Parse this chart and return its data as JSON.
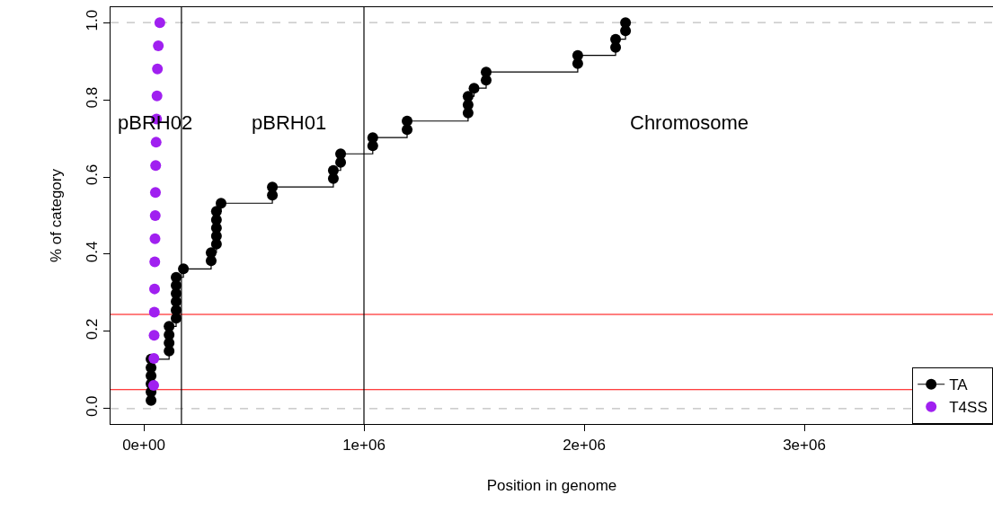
{
  "chart_data": {
    "type": "step",
    "xlabel": "Position in genome",
    "ylabel": "% of category",
    "xlim": [
      -151000,
      3857000
    ],
    "ylim": [
      -0.04,
      1.04
    ],
    "xticks": [
      {
        "value": 0,
        "label": "0e+00"
      },
      {
        "value": 1000000,
        "label": "1e+06"
      },
      {
        "value": 2000000,
        "label": "2e+06"
      },
      {
        "value": 3000000,
        "label": "3e+06"
      }
    ],
    "yticks": [
      {
        "value": 0,
        "label": "0.0"
      },
      {
        "value": 0.2,
        "label": "0.2"
      },
      {
        "value": 0.4,
        "label": "0.4"
      },
      {
        "value": 0.6,
        "label": "0.6"
      },
      {
        "value": 0.8,
        "label": "0.8"
      },
      {
        "value": 1,
        "label": "1.0"
      }
    ],
    "series": [
      {
        "name": "TA",
        "color": "#000000",
        "x": [
          33000,
          33000,
          33000,
          33000,
          33000,
          33000,
          115000,
          115000,
          115000,
          115000,
          147000,
          147000,
          147000,
          147000,
          147000,
          147000,
          180000,
          306000,
          306000,
          330000,
          330000,
          330000,
          330000,
          330000,
          351000,
          584000,
          584000,
          861000,
          861000,
          894000,
          894000,
          1040000,
          1040000,
          1196000,
          1196000,
          1473000,
          1473000,
          1473000,
          1500000,
          1555000,
          1555000,
          1971000,
          1971000,
          2143000,
          2143000,
          2188000,
          2188000
        ],
        "values": [
          0.021,
          0.043,
          0.064,
          0.085,
          0.106,
          0.128,
          0.149,
          0.17,
          0.191,
          0.213,
          0.234,
          0.255,
          0.277,
          0.298,
          0.319,
          0.34,
          0.362,
          0.383,
          0.404,
          0.426,
          0.447,
          0.468,
          0.489,
          0.511,
          0.532,
          0.553,
          0.574,
          0.596,
          0.617,
          0.638,
          0.66,
          0.681,
          0.702,
          0.723,
          0.745,
          0.766,
          0.787,
          0.809,
          0.83,
          0.851,
          0.872,
          0.894,
          0.915,
          0.936,
          0.957,
          0.979,
          1.0
        ]
      },
      {
        "name": "T4SS",
        "color": "#a020f0",
        "type": "scatter",
        "x": [
          45000,
          46000,
          47000,
          48000,
          49000,
          50000,
          51000,
          52000,
          53000,
          54000,
          56000,
          58000,
          60000,
          62000,
          66000,
          73000
        ],
        "values": [
          0.06,
          0.13,
          0.19,
          0.25,
          0.31,
          0.38,
          0.44,
          0.5,
          0.56,
          0.63,
          0.69,
          0.75,
          0.81,
          0.88,
          0.94,
          1.0
        ]
      }
    ],
    "marker": "circle",
    "ref_lines": [
      {
        "axis": "y",
        "value": 0,
        "color": "#bebebe",
        "line_style": "dashed"
      },
      {
        "axis": "y",
        "value": 1,
        "color": "#bebebe",
        "line_style": "dashed"
      },
      {
        "axis": "y",
        "value": 0.244,
        "color": "#ff0000",
        "line_style": "solid"
      },
      {
        "axis": "y",
        "value": 0.049,
        "color": "#ff0000",
        "line_style": "solid"
      },
      {
        "axis": "x",
        "value": 171000,
        "color": "#000000",
        "line_style": "solid"
      },
      {
        "axis": "x",
        "value": 1000000,
        "color": "#000000",
        "line_style": "solid"
      }
    ],
    "annotations": [
      "pBRH02",
      "pBRH01",
      "Chromosome"
    ],
    "legend": "bottom right",
    "grid": false
  }
}
